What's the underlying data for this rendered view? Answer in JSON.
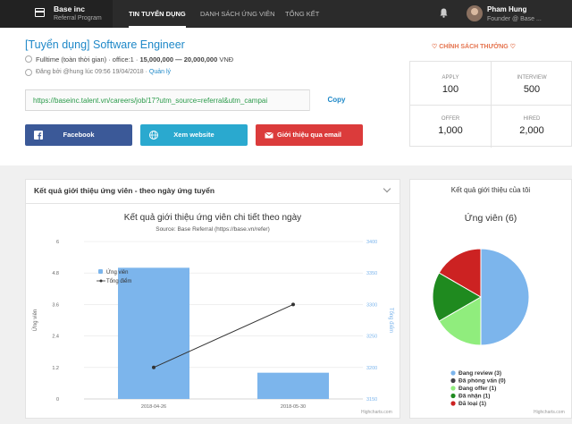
{
  "brand": {
    "name": "Base inc",
    "sub": "Referral Program"
  },
  "nav": {
    "items": [
      "TIN TUYỂN DỤNG",
      "DANH SÁCH ỨNG VIÊN",
      "TỔNG KẾT"
    ]
  },
  "user": {
    "name": "Pham Hung",
    "role": "Founder @ Base ..."
  },
  "job": {
    "title": "[Tuyển dụng] Software Engineer",
    "meta_prefix": "Fulltime (toàn thời gian) · office:1 · ",
    "salary": "15,000,000 — 20,000,000",
    "currency": " VNĐ",
    "posted": "Đăng bởi @hung lúc 09:56 19/04/2018 · ",
    "manage": "Quản lý"
  },
  "share": {
    "url": "https://baseinc.talent.vn/careers/job/17?utm_source=referral&utm_campai",
    "copy": "Copy",
    "facebook": "Facebook",
    "website": "Xem website",
    "email": "Giới thiệu qua email"
  },
  "policy": "CHÍNH SÁCH THƯỞNG",
  "stats": [
    {
      "label": "APPLY",
      "value": "100"
    },
    {
      "label": "INTERVIEW",
      "value": "500"
    },
    {
      "label": "OFFER",
      "value": "1,000"
    },
    {
      "label": "HIRED",
      "value": "2,000"
    }
  ],
  "panel_left": {
    "title": "Kết quả giới thiệu ứng viên - theo ngày ứng tuyển"
  },
  "panel_right": {
    "title": "Kết quả giới thiệu của tôi"
  },
  "chart_data": [
    {
      "type": "bar",
      "title": "Kết quả giới thiệu ứng viên chi tiết theo ngày",
      "subtitle": "Source: Base Referral (https://base.vn/refer)",
      "categories": [
        "2018-04-26",
        "2018-05-30"
      ],
      "series": [
        {
          "name": "Ứng viên",
          "type": "bar",
          "axis": "left",
          "values": [
            5,
            1
          ]
        },
        {
          "name": "Tổng điểm",
          "type": "line",
          "axis": "right",
          "values": [
            3200,
            3300
          ]
        }
      ],
      "ylabel": "Ứng viên",
      "ylabel_right": "Tổng điểm",
      "ylim": [
        0,
        6
      ],
      "yticks": [
        "0",
        "1.2",
        "2.4",
        "3.6",
        "4.8",
        "6"
      ],
      "ylim_right": [
        3150,
        3400
      ],
      "yticks_right": [
        "3150",
        "3200",
        "3250",
        "3300",
        "3350",
        "3400"
      ],
      "credit": "Highcharts.com"
    },
    {
      "type": "pie",
      "title": "Ứng viên (6)",
      "slices": [
        {
          "name": "Đang review (3)",
          "value": 3,
          "color": "#7cb5ec"
        },
        {
          "name": "Đã phỏng vấn (0)",
          "value": 0,
          "color": "#434348"
        },
        {
          "name": "Đang offer (1)",
          "value": 1,
          "color": "#90ed7d"
        },
        {
          "name": "Đã nhận (1)",
          "value": 1,
          "color": "#1f8a1f"
        },
        {
          "name": "Đã loại (1)",
          "value": 1,
          "color": "#cc2222"
        }
      ],
      "credit": "Highcharts.com"
    }
  ]
}
